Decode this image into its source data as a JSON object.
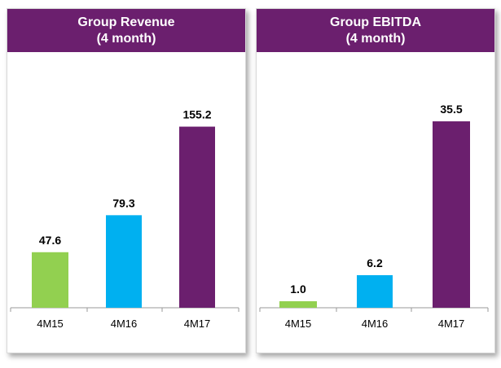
{
  "chart_data": [
    {
      "type": "bar",
      "title": "Group Revenue",
      "subtitle": "(4 month)",
      "categories": [
        "4M15",
        "4M16",
        "4M17"
      ],
      "values": [
        47.6,
        79.3,
        155.2
      ],
      "value_labels": [
        "47.6",
        "79.3",
        "155.2"
      ],
      "colors": [
        "#92d050",
        "#00b0f0",
        "#6b1f6e"
      ],
      "ylim": [
        0,
        180
      ],
      "grid": false
    },
    {
      "type": "bar",
      "title": "Group EBITDA",
      "subtitle": "(4 month)",
      "categories": [
        "4M15",
        "4M16",
        "4M17"
      ],
      "values": [
        1.0,
        6.2,
        35.5
      ],
      "value_labels": [
        "1.0",
        "6.2",
        "35.5"
      ],
      "colors": [
        "#92d050",
        "#00b0f0",
        "#6b1f6e"
      ],
      "ylim": [
        0,
        40
      ],
      "grid": false
    }
  ]
}
